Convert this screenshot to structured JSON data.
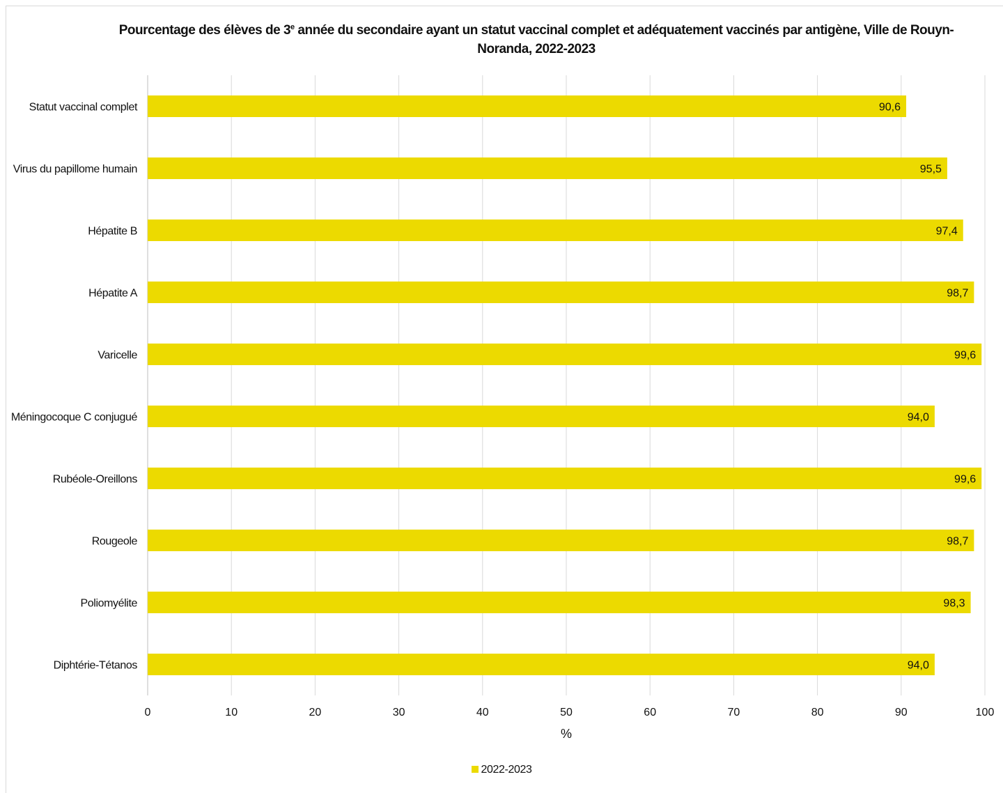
{
  "colors": {
    "bar": "#ecda00",
    "grid": "#d9d9d9",
    "axis": "#bfbfbf",
    "text": "#111111"
  },
  "chart_data": {
    "type": "bar",
    "orientation": "horizontal",
    "title": {
      "before": "Pourcentage des élèves de 3",
      "superscript": "e",
      "after": " année du secondaire ayant un statut vaccinal complet et adéquatement vaccinés par antigène, Ville de Rouyn-Noranda, 2022-2023"
    },
    "categories": [
      "Statut vaccinal complet",
      "Virus du papillome humain",
      "Hépatite B",
      "Hépatite A",
      "Varicelle",
      "Méningocoque C conjugué",
      "Rubéole-Oreillons",
      "Rougeole",
      "Poliomyélite",
      "Diphtérie-Tétanos"
    ],
    "series": [
      {
        "name": "2022-2023",
        "values": [
          90.6,
          95.5,
          97.4,
          98.7,
          99.6,
          94.0,
          99.6,
          98.7,
          98.3,
          94.0
        ],
        "labels": [
          "90,6",
          "95,5",
          "97,4",
          "98,7",
          "99,6",
          "94,0",
          "99,6",
          "98,7",
          "98,3",
          "94,0"
        ]
      }
    ],
    "xlabel": "%",
    "ylabel": "",
    "xlim": [
      0,
      100
    ],
    "xticks": [
      0,
      10,
      20,
      30,
      40,
      50,
      60,
      70,
      80,
      90,
      100
    ],
    "grid": true,
    "legend": "bottom"
  }
}
